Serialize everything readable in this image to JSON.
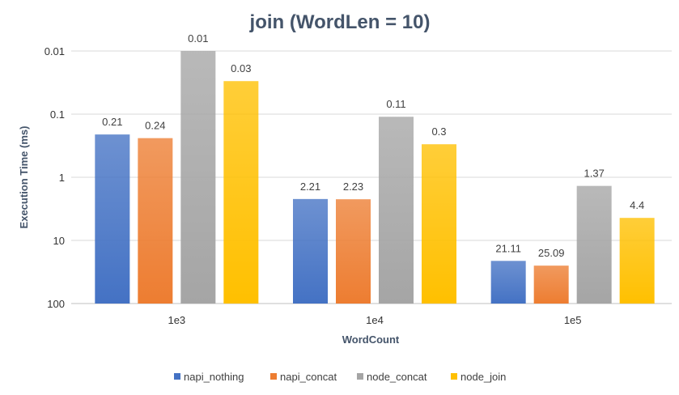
{
  "chart_data": {
    "type": "bar",
    "title": "join (WordLen = 10)",
    "xlabel": "WordCount",
    "ylabel": "Execution Time (ms)",
    "y_scale": "log",
    "y_reversed": true,
    "ylim": [
      0.01,
      100
    ],
    "yticks": [
      "0.01",
      "0.1",
      "1",
      "10",
      "100"
    ],
    "categories": [
      "1e3",
      "1e4",
      "1e5"
    ],
    "series": [
      {
        "name": "napi_nothing",
        "values": [
          0.21,
          2.21,
          21.11
        ],
        "labels": [
          "0.21",
          "2.21",
          "21.11"
        ],
        "color": "#4472c4"
      },
      {
        "name": "napi_concat",
        "values": [
          0.24,
          2.23,
          25.09
        ],
        "labels": [
          "0.24",
          "2.23",
          "25.09"
        ],
        "color": "#ed7d31"
      },
      {
        "name": "node_concat",
        "values": [
          0.01,
          0.11,
          1.37
        ],
        "labels": [
          "0.01",
          "0.11",
          "1.37"
        ],
        "color": "#a5a5a5"
      },
      {
        "name": "node_join",
        "values": [
          0.03,
          0.3,
          4.4
        ],
        "labels": [
          "0.03",
          "0.3",
          "4.4"
        ],
        "color": "#ffc000"
      }
    ],
    "grid": true,
    "legend_position": "bottom"
  }
}
